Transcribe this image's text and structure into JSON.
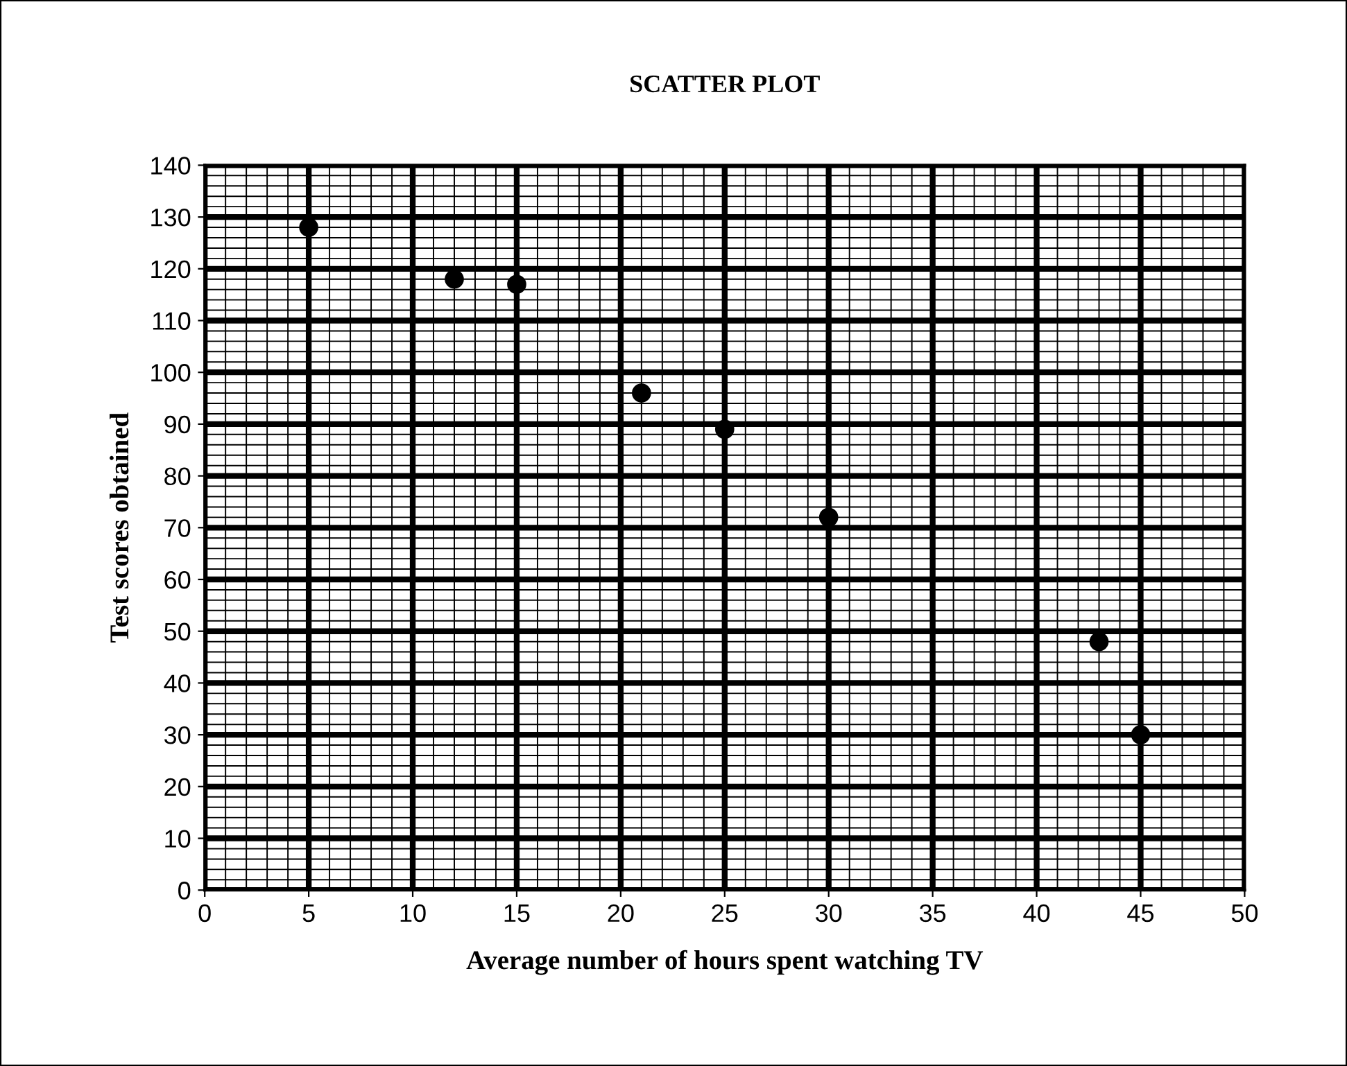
{
  "chart_data": {
    "type": "scatter",
    "title": "SCATTER PLOT",
    "xlabel": "Average number of hours spent watching TV",
    "ylabel": "Test scores obtained",
    "x": [
      5,
      12,
      15,
      21,
      25,
      30,
      43,
      45
    ],
    "values": [
      128,
      118,
      117,
      96,
      89,
      72,
      48,
      30
    ],
    "color": "#000000",
    "marker": "circle",
    "xlim": [
      0,
      50
    ],
    "xticks": [
      0,
      5,
      10,
      15,
      20,
      25,
      30,
      35,
      40,
      45,
      50
    ],
    "ylim": [
      0,
      140
    ],
    "yticks": [
      0,
      10,
      20,
      30,
      40,
      50,
      60,
      70,
      80,
      90,
      100,
      110,
      120,
      130,
      140
    ],
    "grid": true
  }
}
